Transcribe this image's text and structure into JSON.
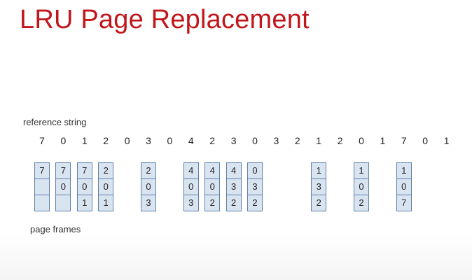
{
  "title": "LRU Page Replacement",
  "reference_label": "reference string",
  "reference_string": [
    "7",
    "0",
    "1",
    "2",
    "0",
    "3",
    "0",
    "4",
    "2",
    "3",
    "0",
    "3",
    "2",
    "1",
    "2",
    "0",
    "1",
    "7",
    "0",
    "1"
  ],
  "frames_label": "page frames",
  "frame_columns": [
    {
      "ref_index": 0,
      "cells": [
        "7",
        "",
        ""
      ]
    },
    {
      "ref_index": 1,
      "cells": [
        "7",
        "0",
        ""
      ]
    },
    {
      "ref_index": 2,
      "cells": [
        "7",
        "0",
        "1"
      ]
    },
    {
      "ref_index": 3,
      "cells": [
        "2",
        "0",
        "1"
      ]
    },
    {
      "ref_index": 5,
      "cells": [
        "2",
        "0",
        "3"
      ]
    },
    {
      "ref_index": 7,
      "cells": [
        "4",
        "0",
        "3"
      ]
    },
    {
      "ref_index": 8,
      "cells": [
        "4",
        "0",
        "2"
      ]
    },
    {
      "ref_index": 9,
      "cells": [
        "4",
        "3",
        "2"
      ]
    },
    {
      "ref_index": 10,
      "cells": [
        "0",
        "3",
        "2"
      ]
    },
    {
      "ref_index": 13,
      "cells": [
        "1",
        "3",
        "2"
      ]
    },
    {
      "ref_index": 15,
      "cells": [
        "1",
        "0",
        "2"
      ]
    },
    {
      "ref_index": 17,
      "cells": [
        "1",
        "0",
        "7"
      ]
    }
  ],
  "colors": {
    "title": "#c0161c",
    "frame_fill": "#d9e4f1",
    "frame_border": "#5f7fa6"
  }
}
